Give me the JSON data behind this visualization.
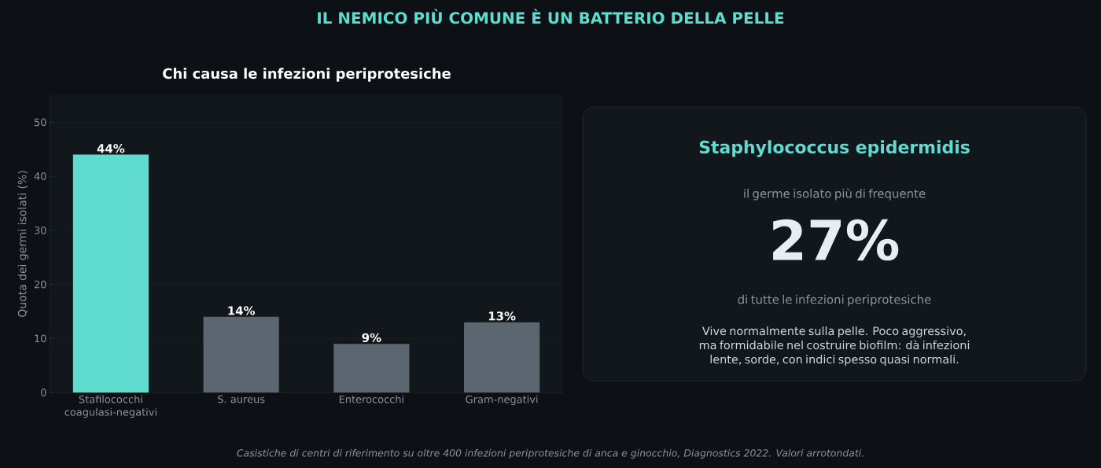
{
  "chart_data": [
    {
      "type": "bar",
      "title": "IL NEMICO PIÙ COMUNE È UN BATTERIO DELLA PELLE",
      "subtitle": "Chi causa le infezioni periprotesiche",
      "ylabel": "Quota dei germi isolati (%)",
      "categories": [
        "Stafilococchi coagulasi-negativi",
        "S. aureus",
        "Enterococchi",
        "Gram-negativi"
      ],
      "values": [
        44,
        14,
        9,
        13
      ],
      "colors": [
        "#5fdbd0",
        "#5c6670",
        "#5c6670",
        "#5c6670"
      ],
      "value_labels": [
        "44%",
        "14%",
        "9%",
        "13%"
      ],
      "ylim": [
        0,
        55
      ],
      "yticks": [
        0,
        10,
        20,
        30,
        40,
        50
      ],
      "grid": "y",
      "annotations": [
        "Casistiche di centri di riferimento su oltre 400 infezioni periprotesiche di anca e ginocchio, Diagnostics 2022. Valori arrotondati."
      ]
    },
    {
      "type": "other",
      "title": "Staphylococcus epidermidis",
      "annotations": [
        "il germe isolato più di frequente",
        "27%",
        "di tutte le infezioni periprotesiche",
        "Vive normalmente sulla pelle. Poco aggressivo, ma formidabile nel costruire biofilm: dà infezioni lente, sorde, con indici spesso quasi normali."
      ]
    }
  ]
}
